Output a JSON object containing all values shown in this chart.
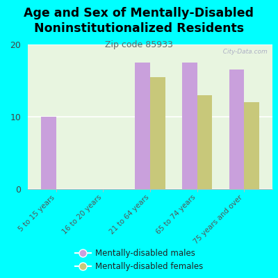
{
  "title": "Age and Sex of Mentally-Disabled\nNoninstitutionalized Residents",
  "subtitle": "Zip code 85933",
  "categories": [
    "5 to 15 years",
    "16 to 20 years",
    "21 to 64 years",
    "65 to 74 years",
    "75 years and over"
  ],
  "males": [
    10,
    0,
    17.5,
    17.5,
    16.5
  ],
  "females": [
    0,
    0,
    15.5,
    13,
    12
  ],
  "male_color": "#C9A0DC",
  "female_color": "#C8C87A",
  "bg_color": "#00FFFF",
  "chart_bg": "#E8F5E0",
  "ylim": [
    0,
    20
  ],
  "yticks": [
    0,
    10,
    20
  ],
  "title_fontsize": 12.5,
  "subtitle_fontsize": 9,
  "legend_labels": [
    "Mentally-disabled males",
    "Mentally-disabled females"
  ],
  "watermark": "  City-Data.com"
}
